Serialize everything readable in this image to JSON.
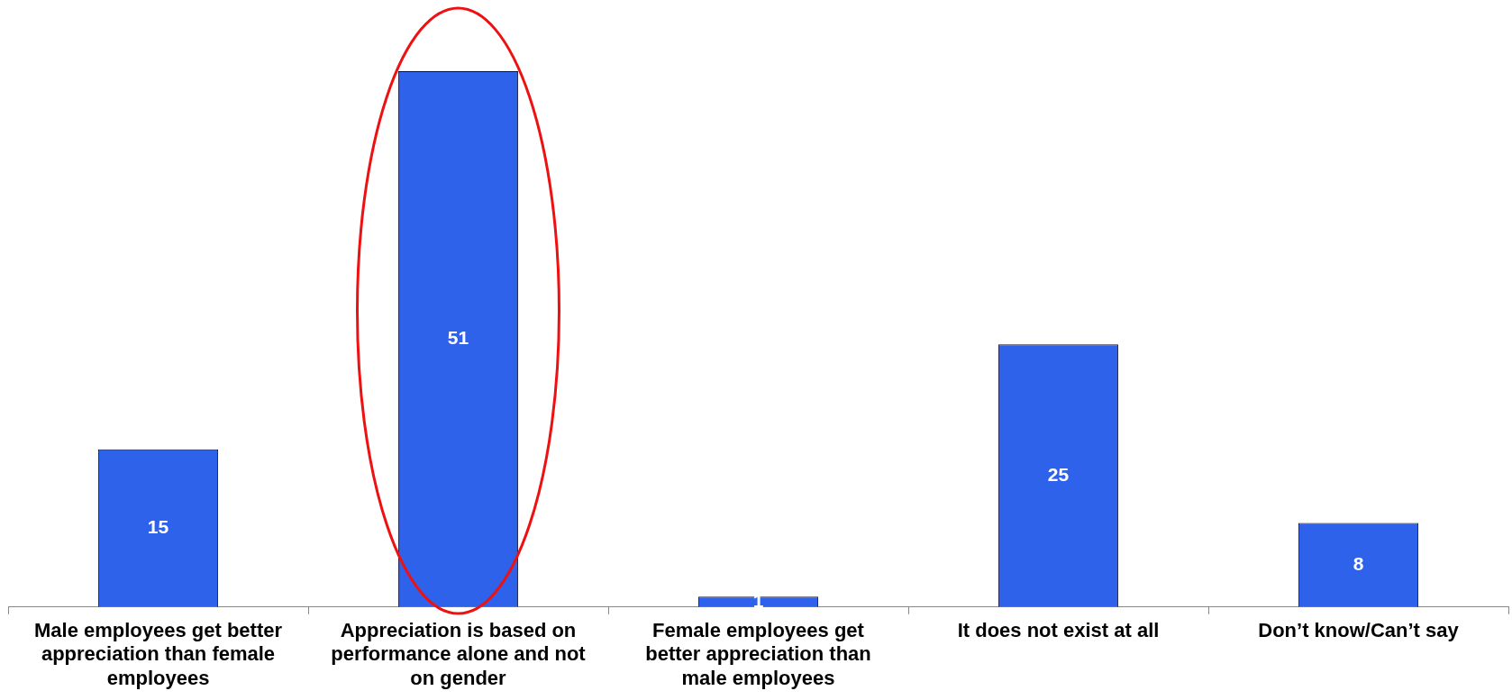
{
  "chart_data": {
    "type": "bar",
    "categories": [
      "Male employees get better appreciation than female employees",
      "Appreciation is based on performance alone and not on gender",
      "Female employees get better appreciation than male employees",
      "It does not exist at all",
      "Don’t know/Can’t say"
    ],
    "values": [
      15,
      51,
      1,
      25,
      8
    ],
    "color": "#2f62ea",
    "data_labels": true,
    "grid": false,
    "legend": false
  }
}
